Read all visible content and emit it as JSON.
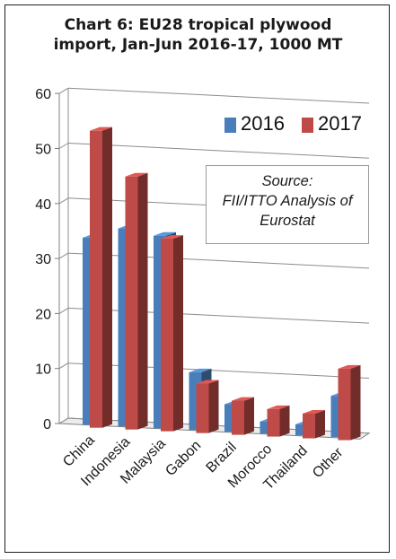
{
  "chart_data": {
    "type": "bar",
    "title": "Chart 6: EU28 tropical plywood import, Jan-Jun 2016-17, 1000 MT",
    "title_lines": [
      "Chart 6: EU28 tropical plywood",
      "import, Jan-Jun 2016-17, 1000 MT"
    ],
    "categories": [
      "China",
      "Indonesia",
      "Malaysia",
      "Gabon",
      "Brazil",
      "Morocco",
      "Thailand",
      "Other"
    ],
    "series": [
      {
        "name": "2016",
        "color": "#4a7ebb",
        "values": [
          34,
          36,
          35,
          10.5,
          5,
          2.2,
          2,
          7.5
        ]
      },
      {
        "name": "2017",
        "color": "#be4b48",
        "values": [
          54,
          46,
          35,
          9,
          6.2,
          5,
          4.5,
          13
        ]
      }
    ],
    "ylim": [
      0,
      60
    ],
    "yticks": [
      0,
      10,
      20,
      30,
      40,
      50,
      60
    ],
    "grid": true,
    "style": "3d-clustered-column",
    "legend_position": "top-right",
    "annotation_lines": [
      "Source:",
      "FII/ITTO Analysis of",
      "Eurostat"
    ]
  }
}
